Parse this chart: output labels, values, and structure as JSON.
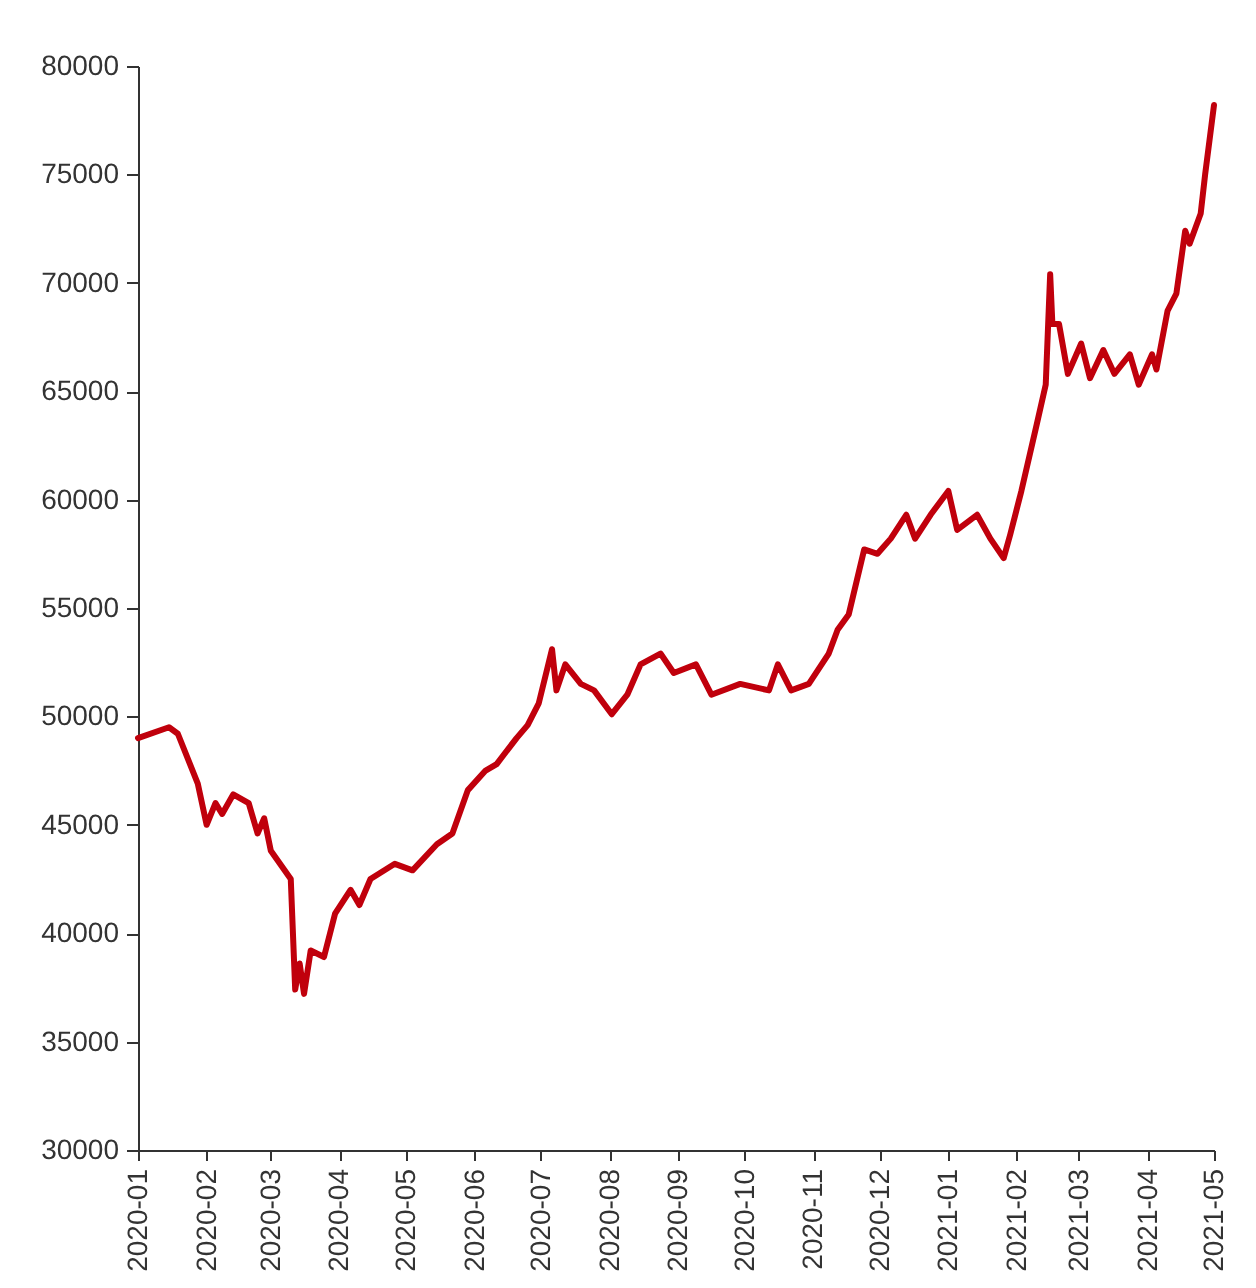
{
  "chart_data": {
    "type": "line",
    "x": [
      "2020-01-01",
      "2020-01-15",
      "2020-01-19",
      "2020-01-28",
      "2020-02-01",
      "2020-02-05",
      "2020-02-08",
      "2020-02-13",
      "2020-02-20",
      "2020-02-24",
      "2020-02-27",
      "2020-03-01",
      "2020-03-10",
      "2020-03-12",
      "2020-03-14",
      "2020-03-16",
      "2020-03-19",
      "2020-03-25",
      "2020-03-30",
      "2020-04-06",
      "2020-04-10",
      "2020-04-15",
      "2020-04-26",
      "2020-05-04",
      "2020-05-15",
      "2020-05-22",
      "2020-05-29",
      "2020-06-06",
      "2020-06-11",
      "2020-06-20",
      "2020-06-25",
      "2020-06-30",
      "2020-07-06",
      "2020-07-08",
      "2020-07-12",
      "2020-07-19",
      "2020-07-25",
      "2020-08-02",
      "2020-08-09",
      "2020-08-15",
      "2020-08-24",
      "2020-08-30",
      "2020-09-09",
      "2020-09-16",
      "2020-09-29",
      "2020-10-12",
      "2020-10-16",
      "2020-10-22",
      "2020-10-30",
      "2020-11-08",
      "2020-11-12",
      "2020-11-17",
      "2020-11-24",
      "2020-11-30",
      "2020-12-06",
      "2020-12-13",
      "2020-12-17",
      "2020-12-24",
      "2021-01-01",
      "2021-01-05",
      "2021-01-14",
      "2021-01-20",
      "2021-01-26",
      "2021-01-29",
      "2021-02-03",
      "2021-02-10",
      "2021-02-14",
      "2021-02-16",
      "2021-02-17",
      "2021-02-20",
      "2021-02-24",
      "2021-03-02",
      "2021-03-06",
      "2021-03-12",
      "2021-03-17",
      "2021-03-24",
      "2021-03-28",
      "2021-04-03",
      "2021-04-05",
      "2021-04-10",
      "2021-04-14",
      "2021-04-18",
      "2021-04-20",
      "2021-04-25",
      "2021-04-27",
      "2021-05-01"
    ],
    "series": [
      {
        "color": "#c0000c",
        "values": [
          49000,
          49500,
          49200,
          46900,
          45000,
          46000,
          45500,
          46400,
          46000,
          44600,
          45300,
          43800,
          42500,
          37400,
          38600,
          37200,
          39200,
          38900,
          40900,
          42000,
          41300,
          42500,
          43200,
          42900,
          44100,
          44600,
          46600,
          47500,
          47800,
          49000,
          49600,
          50600,
          53100,
          51200,
          52400,
          51500,
          51200,
          50100,
          51000,
          52400,
          52900,
          52000,
          52400,
          51000,
          51500,
          51200,
          52400,
          51200,
          51500,
          52900,
          54000,
          54700,
          57700,
          57500,
          58200,
          59300,
          58200,
          59300,
          60400,
          58600,
          59300,
          58200,
          57300,
          58400,
          60400,
          63500,
          65300,
          70400,
          68100,
          68100,
          65800,
          67200,
          65600,
          66900,
          65800,
          66700,
          65300,
          66700,
          66000,
          68700,
          69500,
          72400,
          71800,
          73200,
          75000,
          78200
        ]
      }
    ],
    "xlim": [
      "2020-01-01",
      "2021-05-01"
    ],
    "xticks": [
      {
        "value": "2020-01-01",
        "label": "2020-01"
      },
      {
        "value": "2020-02-01",
        "label": "2020-02"
      },
      {
        "value": "2020-03-01",
        "label": "2020-03"
      },
      {
        "value": "2020-04-01",
        "label": "2020-04"
      },
      {
        "value": "2020-05-01",
        "label": "2020-05"
      },
      {
        "value": "2020-06-01",
        "label": "2020-06"
      },
      {
        "value": "2020-07-01",
        "label": "2020-07"
      },
      {
        "value": "2020-08-01",
        "label": "2020-08"
      },
      {
        "value": "2020-09-01",
        "label": "2020-09"
      },
      {
        "value": "2020-10-01",
        "label": "2020-10"
      },
      {
        "value": "2020-11-01",
        "label": "2020-11"
      },
      {
        "value": "2020-12-01",
        "label": "2020-12"
      },
      {
        "value": "2021-01-01",
        "label": "2021-01"
      },
      {
        "value": "2021-02-01",
        "label": "2021-02"
      },
      {
        "value": "2021-03-01",
        "label": "2021-03"
      },
      {
        "value": "2021-04-01",
        "label": "2021-04"
      },
      {
        "value": "2021-05-01",
        "label": "2021-05"
      }
    ],
    "ylim": [
      30000,
      80000
    ],
    "yticks": [
      30000,
      35000,
      40000,
      45000,
      50000,
      55000,
      60000,
      65000,
      70000,
      75000,
      80000
    ],
    "grid": false,
    "legend": false,
    "marker": "none",
    "line_style": "solid"
  }
}
